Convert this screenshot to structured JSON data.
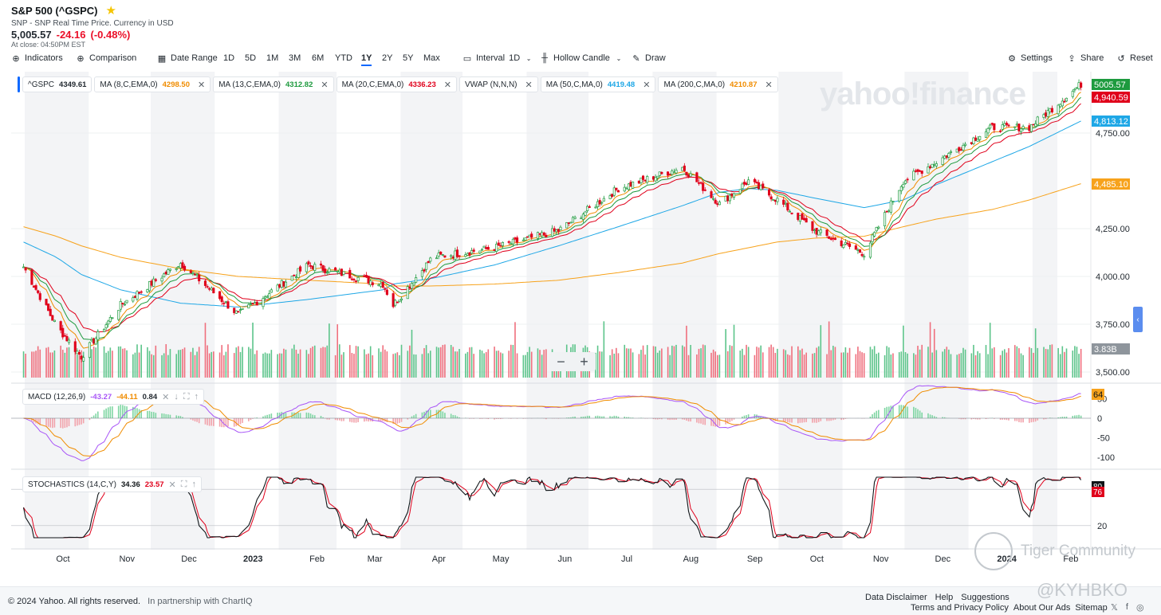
{
  "header": {
    "title": "S&P 500 (^GSPC)",
    "subtitle": "SNP - SNP Real Time Price. Currency in USD",
    "price": "5,005.57",
    "change": "-24.16",
    "change_pct": "(-0.48%)",
    "close_time": "At close: 04:50PM EST"
  },
  "toolbar": {
    "indicators": "Indicators",
    "comparison": "Comparison",
    "date_range": "Date Range",
    "ranges": [
      "1D",
      "5D",
      "1M",
      "3M",
      "6M",
      "YTD",
      "1Y",
      "2Y",
      "5Y",
      "Max"
    ],
    "active_range": "1Y",
    "interval": "Interval",
    "interval_value": "1D",
    "candle": "Hollow Candle",
    "draw": "Draw",
    "settings": "Settings",
    "share": "Share",
    "reset": "Reset"
  },
  "indicators": [
    {
      "label": "^GSPC",
      "value": "4349.61",
      "color": "#232a31",
      "closable": false
    },
    {
      "label": "MA (8,C,EMA,0)",
      "value": "4298.50",
      "color": "#f08c00",
      "closable": true
    },
    {
      "label": "MA (13,C,EMA,0)",
      "value": "4312.82",
      "color": "#1d9a3e",
      "closable": true
    },
    {
      "label": "MA (20,C,EMA,0)",
      "value": "4336.23",
      "color": "#e0001b",
      "closable": true
    },
    {
      "label": "VWAP (N,N,N)",
      "value": "",
      "color": "#232a31",
      "closable": true
    },
    {
      "label": "MA (50,C,MA,0)",
      "value": "4419.48",
      "color": "#1ea7e6",
      "closable": true
    },
    {
      "label": "MA (200,C,MA,0)",
      "value": "4210.87",
      "color": "#f08c00",
      "closable": true
    }
  ],
  "macd_panel": {
    "label": "MACD (12,26,9)",
    "v1": "-43.27",
    "v2": "-44.11",
    "v3": "0.84",
    "last": "64",
    "ticks": [
      "50",
      "0",
      "-50",
      "-100"
    ]
  },
  "stoch_panel": {
    "label": "STOCHASTICS (14,C,Y)",
    "v1": "34.36",
    "v2": "23.57",
    "last1": "80",
    "last2": "76",
    "ticks": [
      "20"
    ]
  },
  "price_axis": {
    "labels": [
      "4,750.00",
      "4,250.00",
      "4,000.00",
      "3,750.00",
      "3,500.00"
    ]
  },
  "price_tags": [
    {
      "text": "5005.57",
      "color": "#1d9a3e"
    },
    {
      "text": "4,940.59",
      "color": "#e0001b"
    },
    {
      "text": "4,813.12",
      "color": "#1ea7e6"
    },
    {
      "text": "4,485.10",
      "color": "#f7a21b"
    },
    {
      "text": "3.83B",
      "color": "#8e959c"
    }
  ],
  "watermark": "yahoo!finance",
  "zoom": {
    "minus": "−",
    "plus": "+"
  },
  "chart_data": {
    "type": "line",
    "y_unit": "index points",
    "ylim": [
      3500,
      5100
    ],
    "x_tick_labels": [
      "Oct",
      "Nov",
      "Dec",
      "2023",
      "Feb",
      "Mar",
      "Apr",
      "May",
      "Jun",
      "Jul",
      "Aug",
      "Sep",
      "Oct",
      "Nov",
      "Dec",
      "2024",
      "Feb"
    ],
    "x": [
      "2022-09-15",
      "2022-10-01",
      "2022-10-13",
      "2022-11-01",
      "2022-11-30",
      "2022-12-28",
      "2023-01-31",
      "2023-03-08",
      "2023-03-13",
      "2023-04-01",
      "2023-05-01",
      "2023-06-01",
      "2023-06-30",
      "2023-07-31",
      "2023-08-18",
      "2023-09-01",
      "2023-09-15",
      "2023-10-03",
      "2023-10-27",
      "2023-11-15",
      "2023-12-01",
      "2023-12-28",
      "2024-01-15",
      "2024-02-09"
    ],
    "series": [
      {
        "values": [
          4050,
          3740,
          3580,
          3850,
          4070,
          3800,
          4060,
          3960,
          3850,
          4100,
          4150,
          4240,
          4460,
          4570,
          4380,
          4500,
          4400,
          4240,
          4120,
          4500,
          4600,
          4780,
          4780,
          5005
        ]
      },
      {
        "values": [
          4180,
          4100,
          4010,
          3930,
          3860,
          3840,
          3880,
          3930,
          3960,
          3990,
          4060,
          4160,
          4260,
          4370,
          4440,
          4460,
          4450,
          4410,
          4360,
          4400,
          4480,
          4600,
          4680,
          4813
        ]
      },
      {
        "values": [
          4260,
          4210,
          4160,
          4100,
          4040,
          4000,
          3980,
          3960,
          3950,
          3950,
          3960,
          3980,
          4020,
          4070,
          4120,
          4150,
          4180,
          4200,
          4210,
          4260,
          4300,
          4350,
          4400,
          4485
        ]
      }
    ],
    "volume_last": "3.83B"
  }
}
